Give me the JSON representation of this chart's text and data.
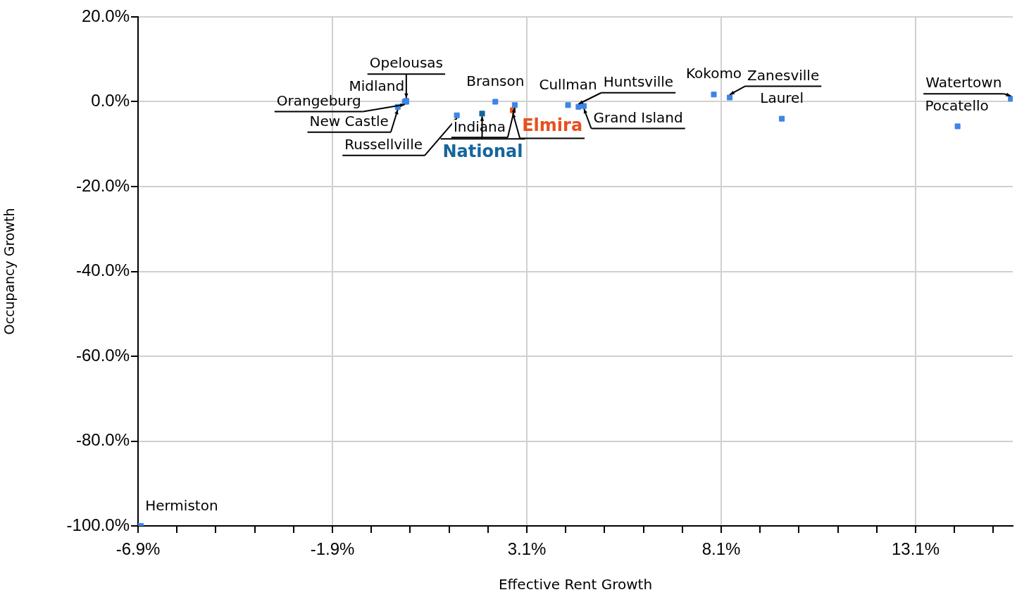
{
  "chart_data": {
    "type": "scatter",
    "xlabel": "Effective Rent Growth",
    "ylabel": "Occupancy Growth",
    "xlim": [
      -6.9,
      15.6
    ],
    "xticks": [
      {
        "value": -6.9,
        "label": "-6.9%"
      },
      {
        "value": -5.9,
        "label": null
      },
      {
        "value": -4.9,
        "label": null
      },
      {
        "value": -3.9,
        "label": null
      },
      {
        "value": -2.9,
        "label": null
      },
      {
        "value": -1.9,
        "label": "-1.9%"
      },
      {
        "value": -0.9,
        "label": null
      },
      {
        "value": 0.1,
        "label": null
      },
      {
        "value": 1.1,
        "label": null
      },
      {
        "value": 2.1,
        "label": null
      },
      {
        "value": 3.1,
        "label": "3.1%"
      },
      {
        "value": 4.1,
        "label": null
      },
      {
        "value": 5.1,
        "label": null
      },
      {
        "value": 6.1,
        "label": null
      },
      {
        "value": 7.1,
        "label": null
      },
      {
        "value": 8.1,
        "label": "8.1%"
      },
      {
        "value": 9.1,
        "label": null
      },
      {
        "value": 10.1,
        "label": null
      },
      {
        "value": 11.1,
        "label": null
      },
      {
        "value": 12.1,
        "label": null
      },
      {
        "value": 13.1,
        "label": "13.1%"
      },
      {
        "value": 14.1,
        "label": null
      },
      {
        "value": 15.1,
        "label": null
      }
    ],
    "ylim": [
      -100,
      20
    ],
    "yticks": [
      {
        "value": -100,
        "label": "-100.0%"
      },
      {
        "value": -80,
        "label": "-80.0%"
      },
      {
        "value": -60,
        "label": "-60.0%"
      },
      {
        "value": -40,
        "label": "-40.0%"
      },
      {
        "value": -20,
        "label": "-20.0%"
      },
      {
        "value": 0,
        "label": "0.0%"
      },
      {
        "value": 20,
        "label": "20.0%"
      }
    ],
    "grid": true,
    "legend": false,
    "marker": "square",
    "series": [
      {
        "color": "#3d85e6",
        "x": [
          -6.83,
          -0.22,
          0.0,
          0.0,
          -0.04,
          1.3,
          2.29,
          2.79,
          4.16,
          4.43,
          4.57,
          7.91,
          8.32,
          9.66,
          14.18,
          15.55
        ],
        "values": [
          -100,
          -1.2,
          0.0,
          0.2,
          0.0,
          -3.2,
          0.0,
          -0.8,
          -0.8,
          -1.2,
          -1.0,
          1.7,
          1.0,
          -4.0,
          -5.8,
          0.7
        ]
      },
      {
        "name": "Elmira",
        "color": "#e8501e",
        "x": [
          2.74
        ],
        "values": [
          -2.0
        ]
      },
      {
        "name": "National",
        "color": "#15669c",
        "x": [
          1.95
        ],
        "values": [
          -2.8
        ]
      }
    ],
    "annotations": [
      {
        "text": "Hermiston",
        "x": -6.83,
        "y": -100
      },
      {
        "text": "New Castle",
        "x": -0.22,
        "y": -1.2
      },
      {
        "text": "Midland",
        "x": 0.0,
        "y": 0.0
      },
      {
        "text": "Opelousas",
        "x": 0.0,
        "y": 0.2
      },
      {
        "text": "Orangeburg",
        "x": -0.04,
        "y": 0.0
      },
      {
        "text": "Russellville",
        "x": 1.3,
        "y": -3.2
      },
      {
        "text": "Branson",
        "x": 2.29,
        "y": 0.0
      },
      {
        "text": "Indiana",
        "x": 2.79,
        "y": -0.8
      },
      {
        "text": "Cullman",
        "x": 4.16,
        "y": -0.8
      },
      {
        "text": "Huntsville",
        "x": 4.43,
        "y": -1.2
      },
      {
        "text": "Grand Island",
        "x": 4.57,
        "y": -1.0
      },
      {
        "text": "Kokomo",
        "x": 7.91,
        "y": 1.7
      },
      {
        "text": "Zanesville",
        "x": 8.32,
        "y": 1.0
      },
      {
        "text": "Laurel",
        "x": 9.66,
        "y": -4.0
      },
      {
        "text": "Pocatello",
        "x": 14.18,
        "y": -5.8
      },
      {
        "text": "Watertown",
        "x": 15.55,
        "y": 0.7
      }
    ]
  }
}
